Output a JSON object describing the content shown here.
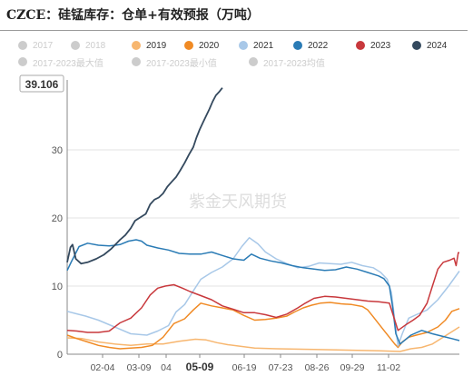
{
  "title": "CZCE：硅锰库存：仓单+有效预报（万吨）",
  "legend": [
    {
      "label": "2017",
      "color": "#cccccc",
      "visible": false
    },
    {
      "label": "2018",
      "color": "#cccccc",
      "visible": false
    },
    {
      "label": "2019",
      "color": "#f7b66f",
      "visible": true
    },
    {
      "label": "2020",
      "color": "#f08a24",
      "visible": true
    },
    {
      "label": "2021",
      "color": "#a8c8e8",
      "visible": true
    },
    {
      "label": "2022",
      "color": "#2a7bb5",
      "visible": true
    },
    {
      "label": "2023",
      "color": "#c8383c",
      "visible": true
    },
    {
      "label": "2024",
      "color": "#34495e",
      "visible": true
    },
    {
      "label": "2017-2023最大值",
      "color": "#cccccc",
      "visible": false
    },
    {
      "label": "2017-2023最小值",
      "color": "#cccccc",
      "visible": false
    },
    {
      "label": "2017-2023均值",
      "color": "#cccccc",
      "visible": false
    }
  ],
  "watermark": "紫金天风期货",
  "chart_data": {
    "type": "line",
    "ylim": [
      0,
      40
    ],
    "yticks": [
      0,
      10,
      20,
      30
    ],
    "last_value_label": "39.106",
    "x_tick_labels": [
      "02-04",
      "03-09",
      "04",
      "05-09",
      "06-19",
      "07-23",
      "08-26",
      "09-29",
      "11-02"
    ],
    "highlighted_x_label": "05-09",
    "x_domain_days": [
      1,
      365
    ],
    "series": [
      {
        "name": "2019",
        "color": "#f7b66f",
        "points": [
          [
            1,
            2.4
          ],
          [
            15,
            2.3
          ],
          [
            30,
            1.8
          ],
          [
            45,
            1.5
          ],
          [
            60,
            1.3
          ],
          [
            75,
            1.5
          ],
          [
            90,
            1.5
          ],
          [
            105,
            1.9
          ],
          [
            120,
            2.2
          ],
          [
            130,
            2.1
          ],
          [
            140,
            1.7
          ],
          [
            150,
            1.4
          ],
          [
            160,
            1.2
          ],
          [
            175,
            0.9
          ],
          [
            195,
            0.8
          ],
          [
            230,
            0.7
          ],
          [
            260,
            0.6
          ],
          [
            290,
            0.5
          ],
          [
            310,
            0.4
          ],
          [
            320,
            0.8
          ],
          [
            330,
            1.0
          ],
          [
            340,
            1.5
          ],
          [
            350,
            2.5
          ],
          [
            360,
            3.5
          ],
          [
            365,
            4.0
          ]
        ]
      },
      {
        "name": "2020",
        "color": "#f08a24",
        "points": [
          [
            1,
            2.8
          ],
          [
            10,
            2.3
          ],
          [
            20,
            1.8
          ],
          [
            30,
            1.3
          ],
          [
            40,
            1.0
          ],
          [
            50,
            0.8
          ],
          [
            60,
            0.9
          ],
          [
            70,
            1.0
          ],
          [
            80,
            1.3
          ],
          [
            90,
            2.5
          ],
          [
            95,
            3.5
          ],
          [
            100,
            4.5
          ],
          [
            110,
            5.2
          ],
          [
            118,
            6.5
          ],
          [
            125,
            7.5
          ],
          [
            135,
            7.1
          ],
          [
            145,
            6.8
          ],
          [
            155,
            6.5
          ],
          [
            165,
            5.7
          ],
          [
            175,
            5.0
          ],
          [
            185,
            5.1
          ],
          [
            195,
            5.3
          ],
          [
            205,
            5.6
          ],
          [
            212,
            6.2
          ],
          [
            220,
            6.8
          ],
          [
            228,
            7.2
          ],
          [
            236,
            7.5
          ],
          [
            245,
            7.6
          ],
          [
            255,
            7.4
          ],
          [
            265,
            7.3
          ],
          [
            275,
            7.0
          ],
          [
            280,
            6.5
          ],
          [
            285,
            5.5
          ],
          [
            290,
            4.5
          ],
          [
            295,
            3.5
          ],
          [
            300,
            2.5
          ],
          [
            305,
            1.5
          ],
          [
            308,
            1.0
          ],
          [
            312,
            1.8
          ],
          [
            318,
            2.5
          ],
          [
            325,
            2.8
          ],
          [
            335,
            3.2
          ],
          [
            345,
            4.0
          ],
          [
            352,
            5.0
          ],
          [
            358,
            6.3
          ],
          [
            365,
            6.7
          ]
        ]
      },
      {
        "name": "2021",
        "color": "#a8c8e8",
        "points": [
          [
            1,
            6.3
          ],
          [
            8,
            6.0
          ],
          [
            18,
            5.6
          ],
          [
            30,
            5.0
          ],
          [
            45,
            4.0
          ],
          [
            60,
            3.0
          ],
          [
            75,
            2.8
          ],
          [
            85,
            3.4
          ],
          [
            95,
            4.2
          ],
          [
            102,
            6.2
          ],
          [
            110,
            7.3
          ],
          [
            118,
            9.3
          ],
          [
            125,
            11.0
          ],
          [
            135,
            12.0
          ],
          [
            145,
            12.8
          ],
          [
            155,
            14.0
          ],
          [
            163,
            15.8
          ],
          [
            170,
            17.1
          ],
          [
            178,
            16.2
          ],
          [
            185,
            15.0
          ],
          [
            195,
            14.0
          ],
          [
            205,
            13.3
          ],
          [
            215,
            12.7
          ],
          [
            225,
            12.9
          ],
          [
            235,
            13.4
          ],
          [
            245,
            13.3
          ],
          [
            255,
            13.2
          ],
          [
            265,
            13.5
          ],
          [
            275,
            13.0
          ],
          [
            285,
            12.7
          ],
          [
            292,
            12.0
          ],
          [
            298,
            11.0
          ],
          [
            302,
            9.0
          ],
          [
            305,
            5.0
          ],
          [
            308,
            1.2
          ],
          [
            312,
            3.0
          ],
          [
            318,
            5.3
          ],
          [
            325,
            5.8
          ],
          [
            335,
            6.5
          ],
          [
            345,
            8.0
          ],
          [
            355,
            10.0
          ],
          [
            365,
            12.2
          ]
        ]
      },
      {
        "name": "2022",
        "color": "#2a7bb5",
        "points": [
          [
            1,
            12.3
          ],
          [
            5,
            13.6
          ],
          [
            12,
            15.8
          ],
          [
            20,
            16.3
          ],
          [
            30,
            16.0
          ],
          [
            40,
            15.9
          ],
          [
            50,
            16.1
          ],
          [
            58,
            16.6
          ],
          [
            65,
            16.8
          ],
          [
            70,
            16.6
          ],
          [
            75,
            16.0
          ],
          [
            85,
            15.6
          ],
          [
            95,
            15.3
          ],
          [
            105,
            14.8
          ],
          [
            115,
            14.7
          ],
          [
            125,
            14.7
          ],
          [
            135,
            15.0
          ],
          [
            145,
            14.5
          ],
          [
            155,
            14.0
          ],
          [
            165,
            13.8
          ],
          [
            172,
            14.7
          ],
          [
            180,
            14.1
          ],
          [
            190,
            13.7
          ],
          [
            200,
            13.4
          ],
          [
            210,
            13.0
          ],
          [
            220,
            12.7
          ],
          [
            230,
            12.5
          ],
          [
            240,
            12.3
          ],
          [
            250,
            12.4
          ],
          [
            260,
            12.8
          ],
          [
            270,
            12.5
          ],
          [
            280,
            12.0
          ],
          [
            290,
            11.5
          ],
          [
            295,
            11.1
          ],
          [
            300,
            10.0
          ],
          [
            303,
            7.0
          ],
          [
            306,
            3.0
          ],
          [
            310,
            1.5
          ],
          [
            320,
            2.8
          ],
          [
            330,
            3.5
          ],
          [
            340,
            3.0
          ],
          [
            350,
            2.6
          ],
          [
            358,
            2.3
          ],
          [
            365,
            2.0
          ]
        ]
      },
      {
        "name": "2023",
        "color": "#c8383c",
        "points": [
          [
            1,
            3.5
          ],
          [
            10,
            3.4
          ],
          [
            20,
            3.2
          ],
          [
            30,
            3.2
          ],
          [
            40,
            3.4
          ],
          [
            50,
            4.6
          ],
          [
            60,
            5.3
          ],
          [
            70,
            6.8
          ],
          [
            78,
            8.7
          ],
          [
            85,
            9.7
          ],
          [
            92,
            10.0
          ],
          [
            100,
            10.2
          ],
          [
            108,
            9.7
          ],
          [
            115,
            9.2
          ],
          [
            125,
            8.6
          ],
          [
            135,
            8.0
          ],
          [
            145,
            7.1
          ],
          [
            155,
            6.6
          ],
          [
            165,
            6.1
          ],
          [
            175,
            6.1
          ],
          [
            185,
            5.8
          ],
          [
            195,
            5.4
          ],
          [
            205,
            5.9
          ],
          [
            215,
            6.8
          ],
          [
            222,
            7.5
          ],
          [
            230,
            8.2
          ],
          [
            240,
            8.5
          ],
          [
            250,
            8.4
          ],
          [
            260,
            8.2
          ],
          [
            270,
            8.0
          ],
          [
            280,
            7.8
          ],
          [
            290,
            7.7
          ],
          [
            300,
            7.5
          ],
          [
            305,
            5.0
          ],
          [
            308,
            3.5
          ],
          [
            315,
            4.3
          ],
          [
            322,
            5.0
          ],
          [
            328,
            5.7
          ],
          [
            335,
            7.5
          ],
          [
            340,
            10.0
          ],
          [
            345,
            12.5
          ],
          [
            350,
            13.5
          ],
          [
            356,
            13.8
          ],
          [
            360,
            14.1
          ],
          [
            362,
            13.0
          ],
          [
            364,
            14.9
          ],
          [
            365,
            14.9
          ]
        ]
      },
      {
        "name": "2024",
        "color": "#34495e",
        "points": [
          [
            1,
            13.5
          ],
          [
            4,
            15.7
          ],
          [
            6,
            16.1
          ],
          [
            9,
            14.0
          ],
          [
            14,
            13.3
          ],
          [
            20,
            13.5
          ],
          [
            28,
            14.0
          ],
          [
            35,
            14.6
          ],
          [
            42,
            15.5
          ],
          [
            50,
            16.8
          ],
          [
            55,
            17.5
          ],
          [
            60,
            18.5
          ],
          [
            64,
            19.6
          ],
          [
            68,
            20.0
          ],
          [
            74,
            20.6
          ],
          [
            78,
            22.0
          ],
          [
            82,
            22.7
          ],
          [
            86,
            23.0
          ],
          [
            90,
            23.6
          ],
          [
            94,
            24.6
          ],
          [
            98,
            25.3
          ],
          [
            102,
            26.0
          ],
          [
            106,
            27.0
          ],
          [
            110,
            28.1
          ],
          [
            114,
            29.3
          ],
          [
            118,
            30.4
          ],
          [
            121,
            31.8
          ],
          [
            124,
            33.0
          ],
          [
            127,
            34.0
          ],
          [
            130,
            35.0
          ],
          [
            133,
            36.0
          ],
          [
            136,
            37.1
          ],
          [
            139,
            38.0
          ],
          [
            142,
            38.5
          ],
          [
            145,
            39.106
          ]
        ]
      }
    ]
  }
}
